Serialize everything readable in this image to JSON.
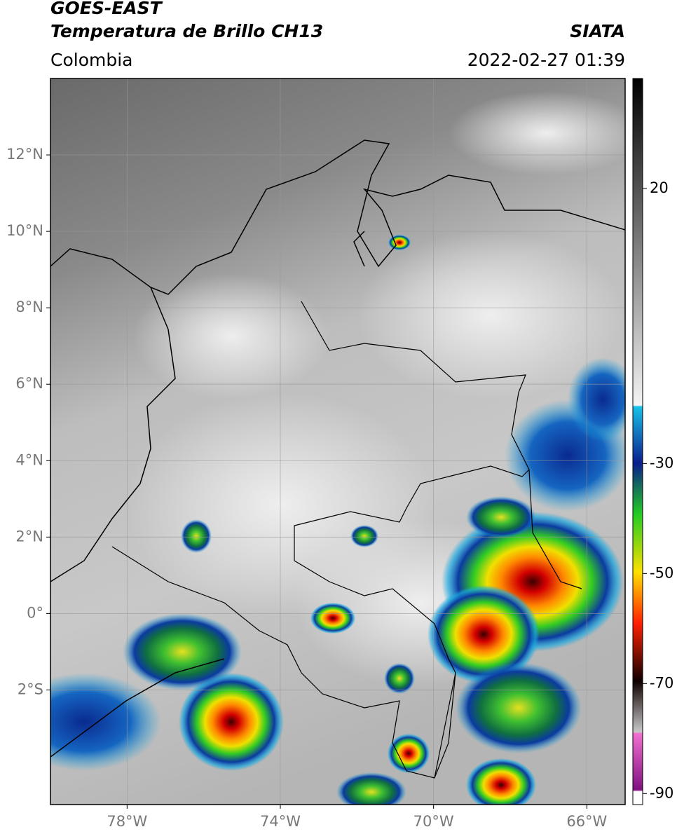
{
  "header": {
    "satellite": "GOES-EAST",
    "product": "Temperatura de Brillo CH13",
    "source": "SIATA",
    "region": "Colombia",
    "datetime": "2022-02-27 01:39"
  },
  "map": {
    "xlim": [
      -80,
      -65
    ],
    "ylim": [
      -5,
      14
    ],
    "xticks": [
      {
        "value": -78,
        "label": "78°W"
      },
      {
        "value": -74,
        "label": "74°W"
      },
      {
        "value": -70,
        "label": "70°W"
      },
      {
        "value": -66,
        "label": "66°W"
      }
    ],
    "yticks": [
      {
        "value": 12,
        "label": "12°N"
      },
      {
        "value": 10,
        "label": "10°N"
      },
      {
        "value": 8,
        "label": "8°N"
      },
      {
        "value": 6,
        "label": "6°N"
      },
      {
        "value": 4,
        "label": "4°N"
      },
      {
        "value": 2,
        "label": "2°N"
      },
      {
        "value": 0,
        "label": "0°"
      },
      {
        "value": -2,
        "label": "2°S"
      }
    ],
    "grid": true
  },
  "colorbar": {
    "lim": [
      -92,
      40
    ],
    "ticks": [
      20,
      -30,
      -50,
      -70,
      -90
    ]
  }
}
